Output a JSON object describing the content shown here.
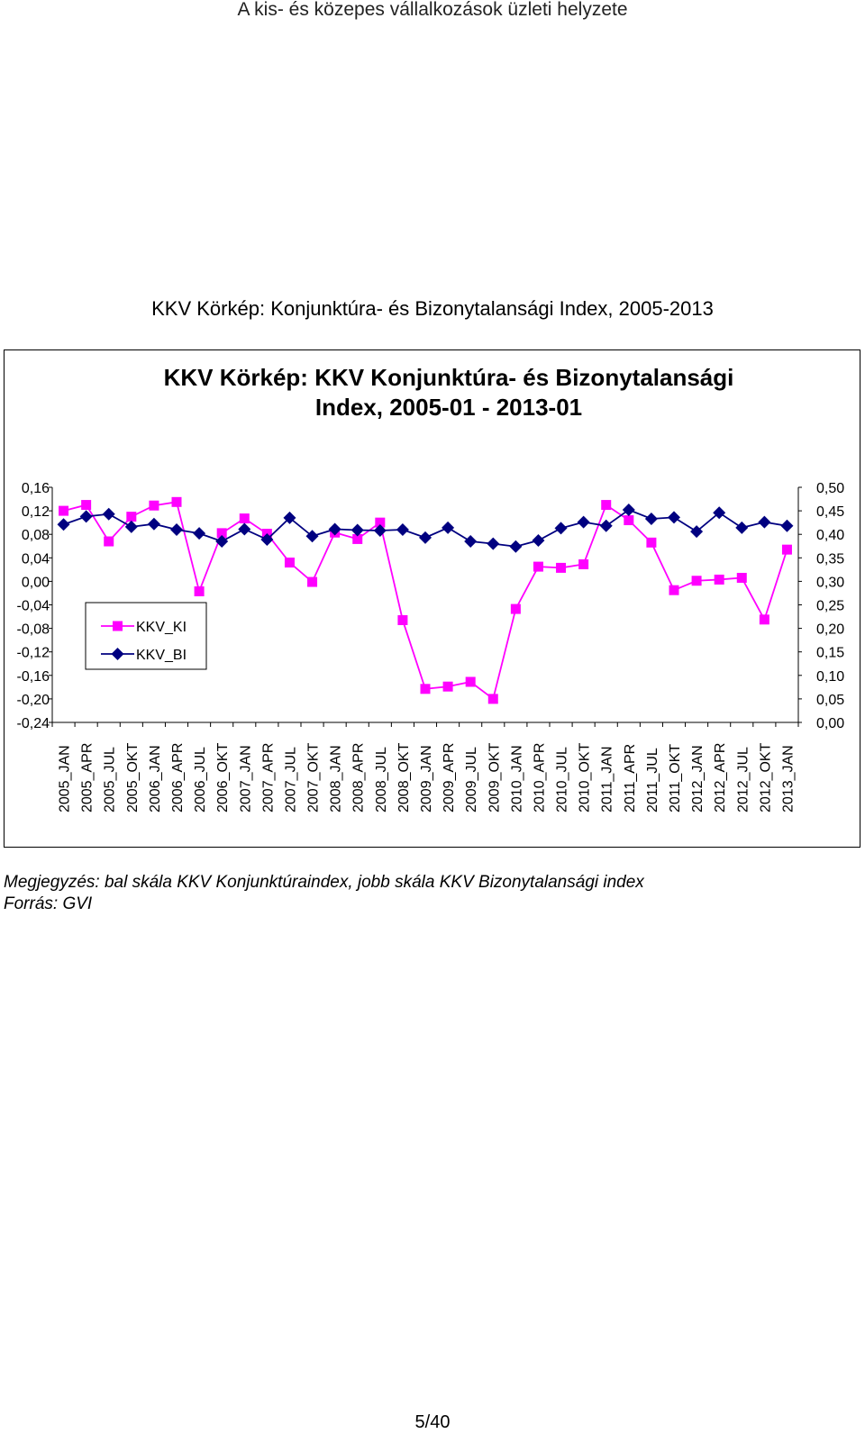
{
  "header": {
    "running_title": "A kis- és közepes vállalkozások üzleti helyzete"
  },
  "document": {
    "figure_title": "KKV Körkép: Konjunktúra- és Bizonytalansági Index, 2005-2013"
  },
  "notes": {
    "scale_note": "Megjegyzés: bal skála KKV Konjunktúraindex, jobb skála KKV Bizonytalansági index",
    "source": "Forrás: GVI"
  },
  "footer": {
    "page": "5/40"
  },
  "colors": {
    "kkv_ki": "#FF00FF",
    "kkv_bi": "#000080"
  },
  "chart_data": {
    "type": "line",
    "title_line1": "KKV Körkép: KKV Konjunktúra- és Bizonytalansági",
    "title_line2": "Index, 2005-01 - 2013-01",
    "categories": [
      "2005_JAN",
      "2005_APR",
      "2005_JUL",
      "2005_OKT",
      "2006_JAN",
      "2006_APR",
      "2006_JUL",
      "2006_OKT",
      "2007_JAN",
      "2007_APR",
      "2007_JUL",
      "2007_OKT",
      "2008_JAN",
      "2008_APR",
      "2008_JUL",
      "2008_OKT",
      "2009_JAN",
      "2009_APR",
      "2009_JUL",
      "2009_OKT",
      "2010_JAN",
      "2010_APR",
      "2010_JUL",
      "2010_OKT",
      "2011_JAN",
      "2011_APR",
      "2011_JUL",
      "2011_OKT",
      "2012_JAN",
      "2012_APR",
      "2012_JUL",
      "2012_OKT",
      "2013_JAN"
    ],
    "left_axis": {
      "min": -0.24,
      "max": 0.16,
      "ticks": [
        "0,16",
        "0,12",
        "0,08",
        "0,04",
        "0,00",
        "-0,04",
        "-0,08",
        "-0,12",
        "-0,16",
        "-0,20",
        "-0,24"
      ]
    },
    "right_axis": {
      "min": 0.0,
      "max": 0.5,
      "ticks": [
        "0,50",
        "0,45",
        "0,40",
        "0,35",
        "0,30",
        "0,25",
        "0,20",
        "0,15",
        "0,10",
        "0,05",
        "0,00"
      ]
    },
    "legend_position": "left-middle",
    "series": [
      {
        "name": "KKV_KI",
        "axis": "left",
        "marker": "square",
        "values": [
          0.12,
          0.13,
          0.068,
          0.11,
          0.129,
          0.135,
          -0.017,
          0.082,
          0.107,
          0.081,
          0.032,
          -0.001,
          0.083,
          0.072,
          0.1,
          -0.066,
          -0.183,
          -0.179,
          -0.171,
          -0.2,
          -0.047,
          0.025,
          0.023,
          0.029,
          0.13,
          0.104,
          0.066,
          -0.015,
          0.001,
          0.003,
          0.006,
          -0.065,
          0.054
        ]
      },
      {
        "name": "KKV_BI",
        "axis": "right",
        "marker": "diamond",
        "values": [
          0.421,
          0.438,
          0.443,
          0.416,
          0.422,
          0.41,
          0.402,
          0.385,
          0.411,
          0.389,
          0.435,
          0.396,
          0.411,
          0.409,
          0.408,
          0.41,
          0.393,
          0.414,
          0.385,
          0.38,
          0.374,
          0.387,
          0.413,
          0.426,
          0.418,
          0.452,
          0.433,
          0.436,
          0.406,
          0.446,
          0.414,
          0.426,
          0.418
        ]
      }
    ]
  }
}
